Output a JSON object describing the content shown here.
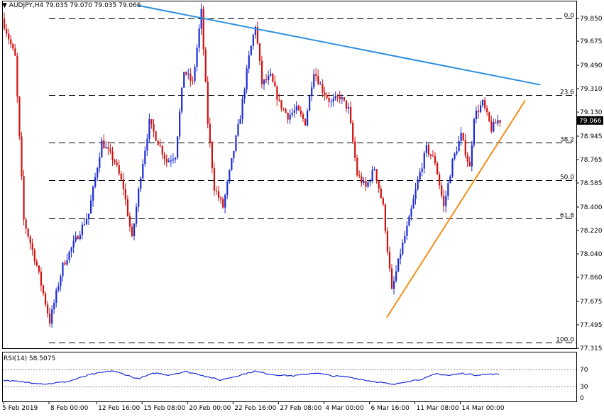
{
  "window": {
    "symbol_info": "AUDJPY,H4  79.035 79.070 79.035 79.066",
    "rsi_info": "RSI(14) 58.5075"
  },
  "colors": {
    "bull": "#1a2bd6",
    "bear": "#d01010",
    "resistance_line": "#2e8fe0",
    "support_line": "#f0901a",
    "rsi_line": "#1a2bd6",
    "price_tag_bg": "#000000",
    "price_tag_fg": "#ffffff",
    "frame": "#000000",
    "grid_dash": "#000000"
  },
  "chart_data": [
    {
      "type": "candlestick",
      "instrument": "AUDJPY",
      "timeframe": "H4",
      "ohlc_current": {
        "open": 79.035,
        "high": 79.07,
        "low": 79.035,
        "close": 79.066
      },
      "last_price": "79.066",
      "ylim": [
        77.315,
        79.91
      ],
      "y_ticks": [
        "79.850",
        "79.675",
        "79.490",
        "79.310",
        "79.130",
        "78.945",
        "78.765",
        "78.585",
        "78.400",
        "78.220",
        "78.040",
        "77.860",
        "77.675",
        "77.495",
        "77.315"
      ],
      "x_ticks": [
        "5 Feb 2019",
        "8 Feb 00:00",
        "12 Feb 16:00",
        "15 Feb 08:00",
        "20 Feb 00:00",
        "22 Feb 16:00",
        "27 Feb 08:00",
        "4 Mar 00:00",
        "6 Mar 16:00",
        "11 Mar 08:00",
        "14 Mar 00:00"
      ],
      "fibonacci": [
        {
          "label": "0.0",
          "value": 79.85
        },
        {
          "label": "23.6",
          "value": 79.262
        },
        {
          "label": "38.2",
          "value": 78.898
        },
        {
          "label": "50.0",
          "value": 78.605
        },
        {
          "label": "61.8",
          "value": 78.311
        },
        {
          "label": "100.0",
          "value": 77.36
        }
      ],
      "trendlines": [
        {
          "name": "resistance",
          "from": {
            "bar": 62,
            "price": 79.95
          },
          "to": {
            "bar": 248,
            "price": 79.34
          }
        },
        {
          "name": "support",
          "from": {
            "bar": 177,
            "price": 77.55
          },
          "to": {
            "bar": 241,
            "price": 79.22
          }
        }
      ],
      "anchor_points": [
        {
          "bar": 0,
          "price": 79.85
        },
        {
          "bar": 6,
          "price": 79.55
        },
        {
          "bar": 10,
          "price": 78.3
        },
        {
          "bar": 16,
          "price": 77.95
        },
        {
          "bar": 22,
          "price": 77.52
        },
        {
          "bar": 28,
          "price": 77.95
        },
        {
          "bar": 34,
          "price": 78.15
        },
        {
          "bar": 40,
          "price": 78.35
        },
        {
          "bar": 46,
          "price": 78.9
        },
        {
          "bar": 52,
          "price": 78.75
        },
        {
          "bar": 56,
          "price": 78.55
        },
        {
          "bar": 60,
          "price": 78.15
        },
        {
          "bar": 64,
          "price": 78.65
        },
        {
          "bar": 68,
          "price": 79.05
        },
        {
          "bar": 72,
          "price": 78.9
        },
        {
          "bar": 76,
          "price": 78.75
        },
        {
          "bar": 80,
          "price": 78.8
        },
        {
          "bar": 84,
          "price": 79.45
        },
        {
          "bar": 88,
          "price": 79.35
        },
        {
          "bar": 92,
          "price": 79.9
        },
        {
          "bar": 95,
          "price": 79.05
        },
        {
          "bar": 98,
          "price": 78.55
        },
        {
          "bar": 102,
          "price": 78.4
        },
        {
          "bar": 106,
          "price": 78.75
        },
        {
          "bar": 110,
          "price": 79.1
        },
        {
          "bar": 114,
          "price": 79.55
        },
        {
          "bar": 117,
          "price": 79.8
        },
        {
          "bar": 120,
          "price": 79.35
        },
        {
          "bar": 124,
          "price": 79.4
        },
        {
          "bar": 128,
          "price": 79.2
        },
        {
          "bar": 132,
          "price": 79.1
        },
        {
          "bar": 136,
          "price": 79.15
        },
        {
          "bar": 140,
          "price": 79.05
        },
        {
          "bar": 144,
          "price": 79.45
        },
        {
          "bar": 148,
          "price": 79.3
        },
        {
          "bar": 152,
          "price": 79.2
        },
        {
          "bar": 156,
          "price": 79.25
        },
        {
          "bar": 160,
          "price": 79.15
        },
        {
          "bar": 164,
          "price": 78.65
        },
        {
          "bar": 168,
          "price": 78.55
        },
        {
          "bar": 172,
          "price": 78.7
        },
        {
          "bar": 176,
          "price": 78.4
        },
        {
          "bar": 180,
          "price": 77.75
        },
        {
          "bar": 184,
          "price": 78.05
        },
        {
          "bar": 188,
          "price": 78.3
        },
        {
          "bar": 192,
          "price": 78.6
        },
        {
          "bar": 196,
          "price": 78.85
        },
        {
          "bar": 200,
          "price": 78.75
        },
        {
          "bar": 204,
          "price": 78.4
        },
        {
          "bar": 208,
          "price": 78.75
        },
        {
          "bar": 212,
          "price": 78.95
        },
        {
          "bar": 216,
          "price": 78.7
        },
        {
          "bar": 218,
          "price": 79.1
        },
        {
          "bar": 222,
          "price": 79.2
        },
        {
          "bar": 226,
          "price": 79.0
        },
        {
          "bar": 229,
          "price": 79.066
        }
      ],
      "indicator": {
        "name": "RSI(14)",
        "value": "58.5075",
        "ylim": [
          0,
          100
        ],
        "levels": [
          70,
          30
        ],
        "y_ticks": [
          "70",
          "30",
          "0"
        ],
        "anchor_points": [
          {
            "bar": 0,
            "value": 45
          },
          {
            "bar": 10,
            "value": 40
          },
          {
            "bar": 20,
            "value": 36
          },
          {
            "bar": 30,
            "value": 42
          },
          {
            "bar": 40,
            "value": 58
          },
          {
            "bar": 50,
            "value": 67
          },
          {
            "bar": 55,
            "value": 60
          },
          {
            "bar": 62,
            "value": 48
          },
          {
            "bar": 70,
            "value": 62
          },
          {
            "bar": 76,
            "value": 57
          },
          {
            "bar": 84,
            "value": 65
          },
          {
            "bar": 90,
            "value": 59
          },
          {
            "bar": 100,
            "value": 45
          },
          {
            "bar": 108,
            "value": 55
          },
          {
            "bar": 116,
            "value": 66
          },
          {
            "bar": 124,
            "value": 58
          },
          {
            "bar": 134,
            "value": 55
          },
          {
            "bar": 144,
            "value": 62
          },
          {
            "bar": 152,
            "value": 55
          },
          {
            "bar": 160,
            "value": 52
          },
          {
            "bar": 168,
            "value": 44
          },
          {
            "bar": 174,
            "value": 40
          },
          {
            "bar": 180,
            "value": 34
          },
          {
            "bar": 186,
            "value": 42
          },
          {
            "bar": 194,
            "value": 48
          },
          {
            "bar": 200,
            "value": 60
          },
          {
            "bar": 206,
            "value": 56
          },
          {
            "bar": 212,
            "value": 61
          },
          {
            "bar": 218,
            "value": 57
          },
          {
            "bar": 224,
            "value": 59
          },
          {
            "bar": 229,
            "value": 58.5
          }
        ]
      }
    }
  ]
}
